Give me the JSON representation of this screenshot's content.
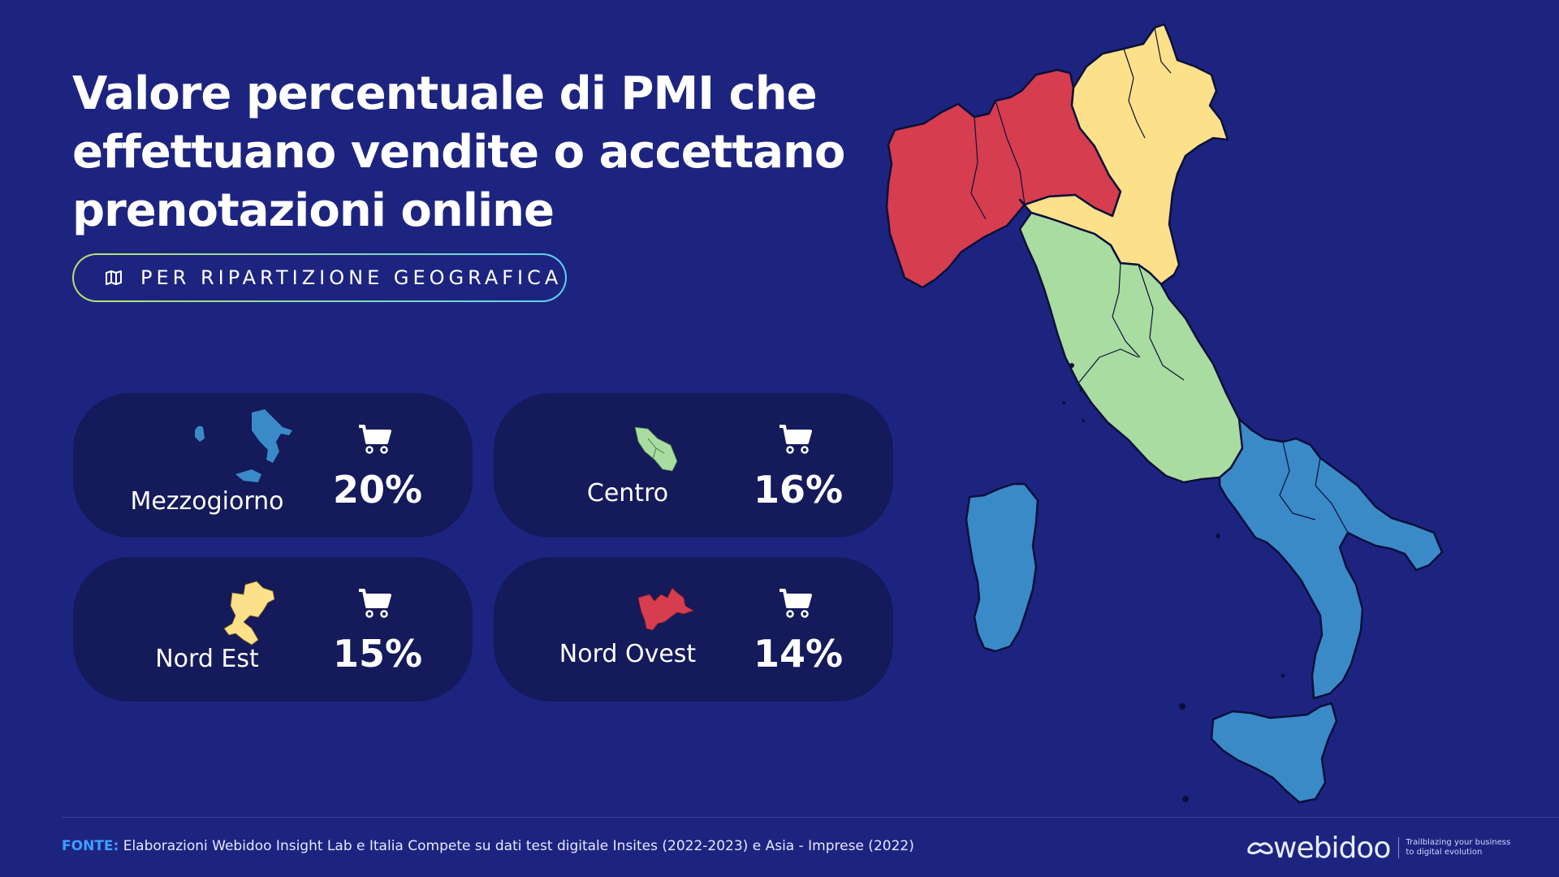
{
  "title": {
    "line1": "Valore percentuale di PMI che",
    "line2": "effettuano vendite o accettano",
    "line3": "prenotazioni online"
  },
  "subtitle": {
    "icon": "map-icon",
    "text": "PER RIPARTIZIONE GEOGRAFICA"
  },
  "regions": [
    {
      "label": "Mezzogiorno",
      "value": "20%",
      "color": "#3a8ac8",
      "icon": "mezzogiorno-map-icon"
    },
    {
      "label": "Centro",
      "value": "16%",
      "color": "#a9dca0",
      "icon": "centro-map-icon"
    },
    {
      "label": "Nord Est",
      "value": "15%",
      "color": "#fde08a",
      "icon": "nord-est-map-icon"
    },
    {
      "label": "Nord Ovest",
      "value": "14%",
      "color": "#d63d4e",
      "icon": "nord-ovest-map-icon"
    }
  ],
  "colors": {
    "background": "#1d2480",
    "card": "#141a5a",
    "nord_ovest": "#d63d4e",
    "nord_est": "#fde08a",
    "centro": "#a9dca0",
    "mezzogiorno": "#3a8ac8",
    "fonte": "#3da0ff"
  },
  "footer": {
    "fonte_label": "FONTE:",
    "source_text": "Elaborazioni Webidoo Insight Lab e Italia Compete su dati test digitale Insites (2022-2023) e Asia - Imprese (2022)"
  },
  "brand": {
    "logo": "webidoo",
    "tagline_line1": "Trailblazing your business",
    "tagline_line2": "to digital evolution"
  }
}
